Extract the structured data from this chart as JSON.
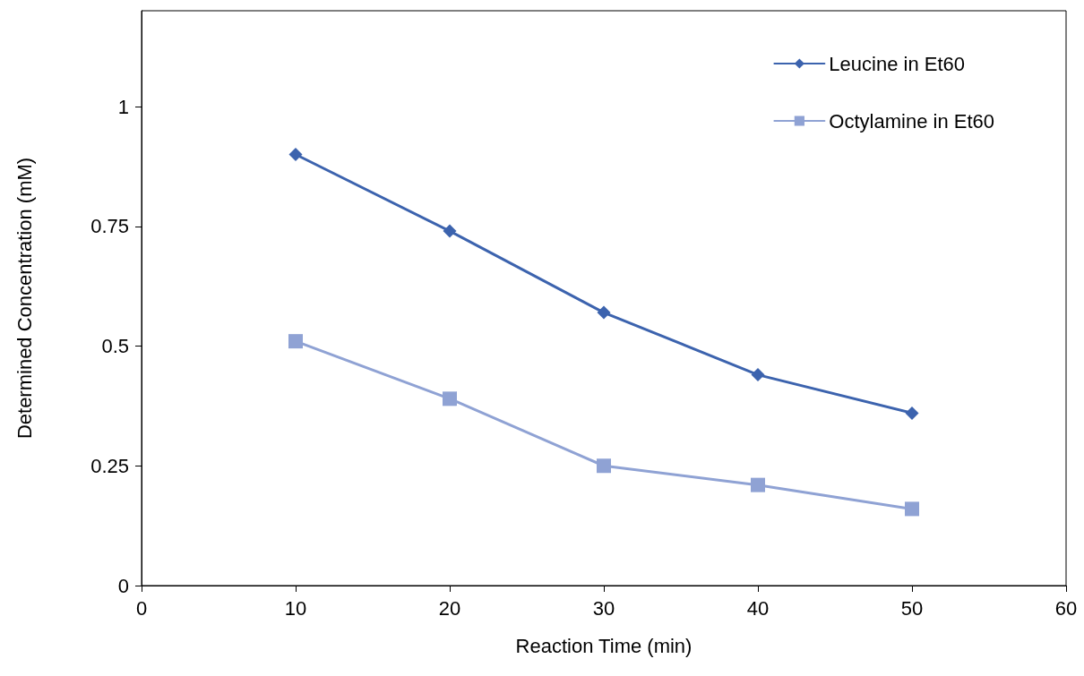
{
  "chart_data": {
    "type": "line",
    "xlabel": "Reaction Time (min)",
    "ylabel": "Determined Concentration (mM)",
    "x": [
      10,
      20,
      30,
      40,
      50
    ],
    "series": [
      {
        "name": "Leucine in Et60",
        "color": "#3c63ae",
        "marker": "diamond",
        "values": [
          0.9,
          0.74,
          0.57,
          0.44,
          0.36
        ]
      },
      {
        "name": "Octylamine in Et60",
        "color": "#8fa2d4",
        "marker": "square",
        "values": [
          0.51,
          0.39,
          0.25,
          0.21,
          0.16
        ]
      }
    ],
    "xlim": [
      0,
      60
    ],
    "xticks": [
      0,
      10,
      20,
      30,
      40,
      50,
      60
    ],
    "ylim": [
      0,
      1.2
    ],
    "yticks": [
      0,
      0.25,
      0.5,
      0.75,
      1
    ],
    "grid": false,
    "legend": "top right",
    "line_style": "solid"
  }
}
